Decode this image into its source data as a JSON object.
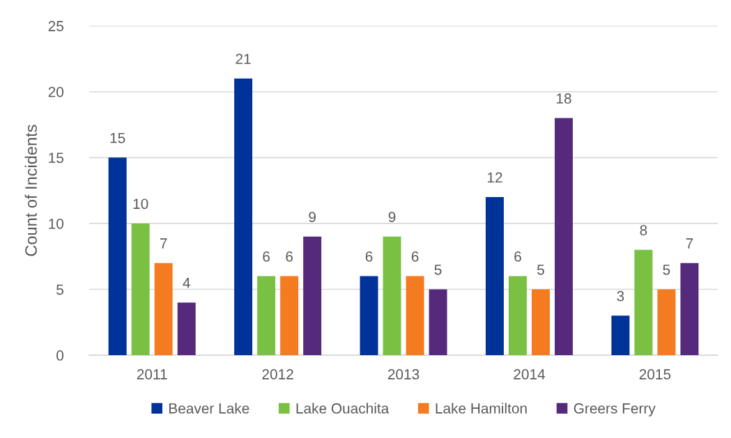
{
  "chart_data": {
    "type": "bar",
    "ylabel": "Count of Incidents",
    "categories": [
      "2011",
      "2012",
      "2013",
      "2014",
      "2015"
    ],
    "series": [
      {
        "name": "Beaver Lake",
        "color": "#003399",
        "values": [
          15,
          21,
          6,
          12,
          3
        ]
      },
      {
        "name": "Lake Ouachita",
        "color": "#7ac143",
        "values": [
          10,
          6,
          9,
          6,
          8
        ]
      },
      {
        "name": "Lake Hamilton",
        "color": "#f47b20",
        "values": [
          7,
          6,
          6,
          5,
          5
        ]
      },
      {
        "name": "Greers Ferry",
        "color": "#552a7c",
        "values": [
          4,
          9,
          5,
          18,
          7
        ]
      }
    ],
    "ylim": [
      0,
      25
    ],
    "yticks": [
      0,
      5,
      10,
      15,
      20,
      25
    ],
    "grid": "y",
    "legend": "bottom",
    "data_labels": true
  }
}
